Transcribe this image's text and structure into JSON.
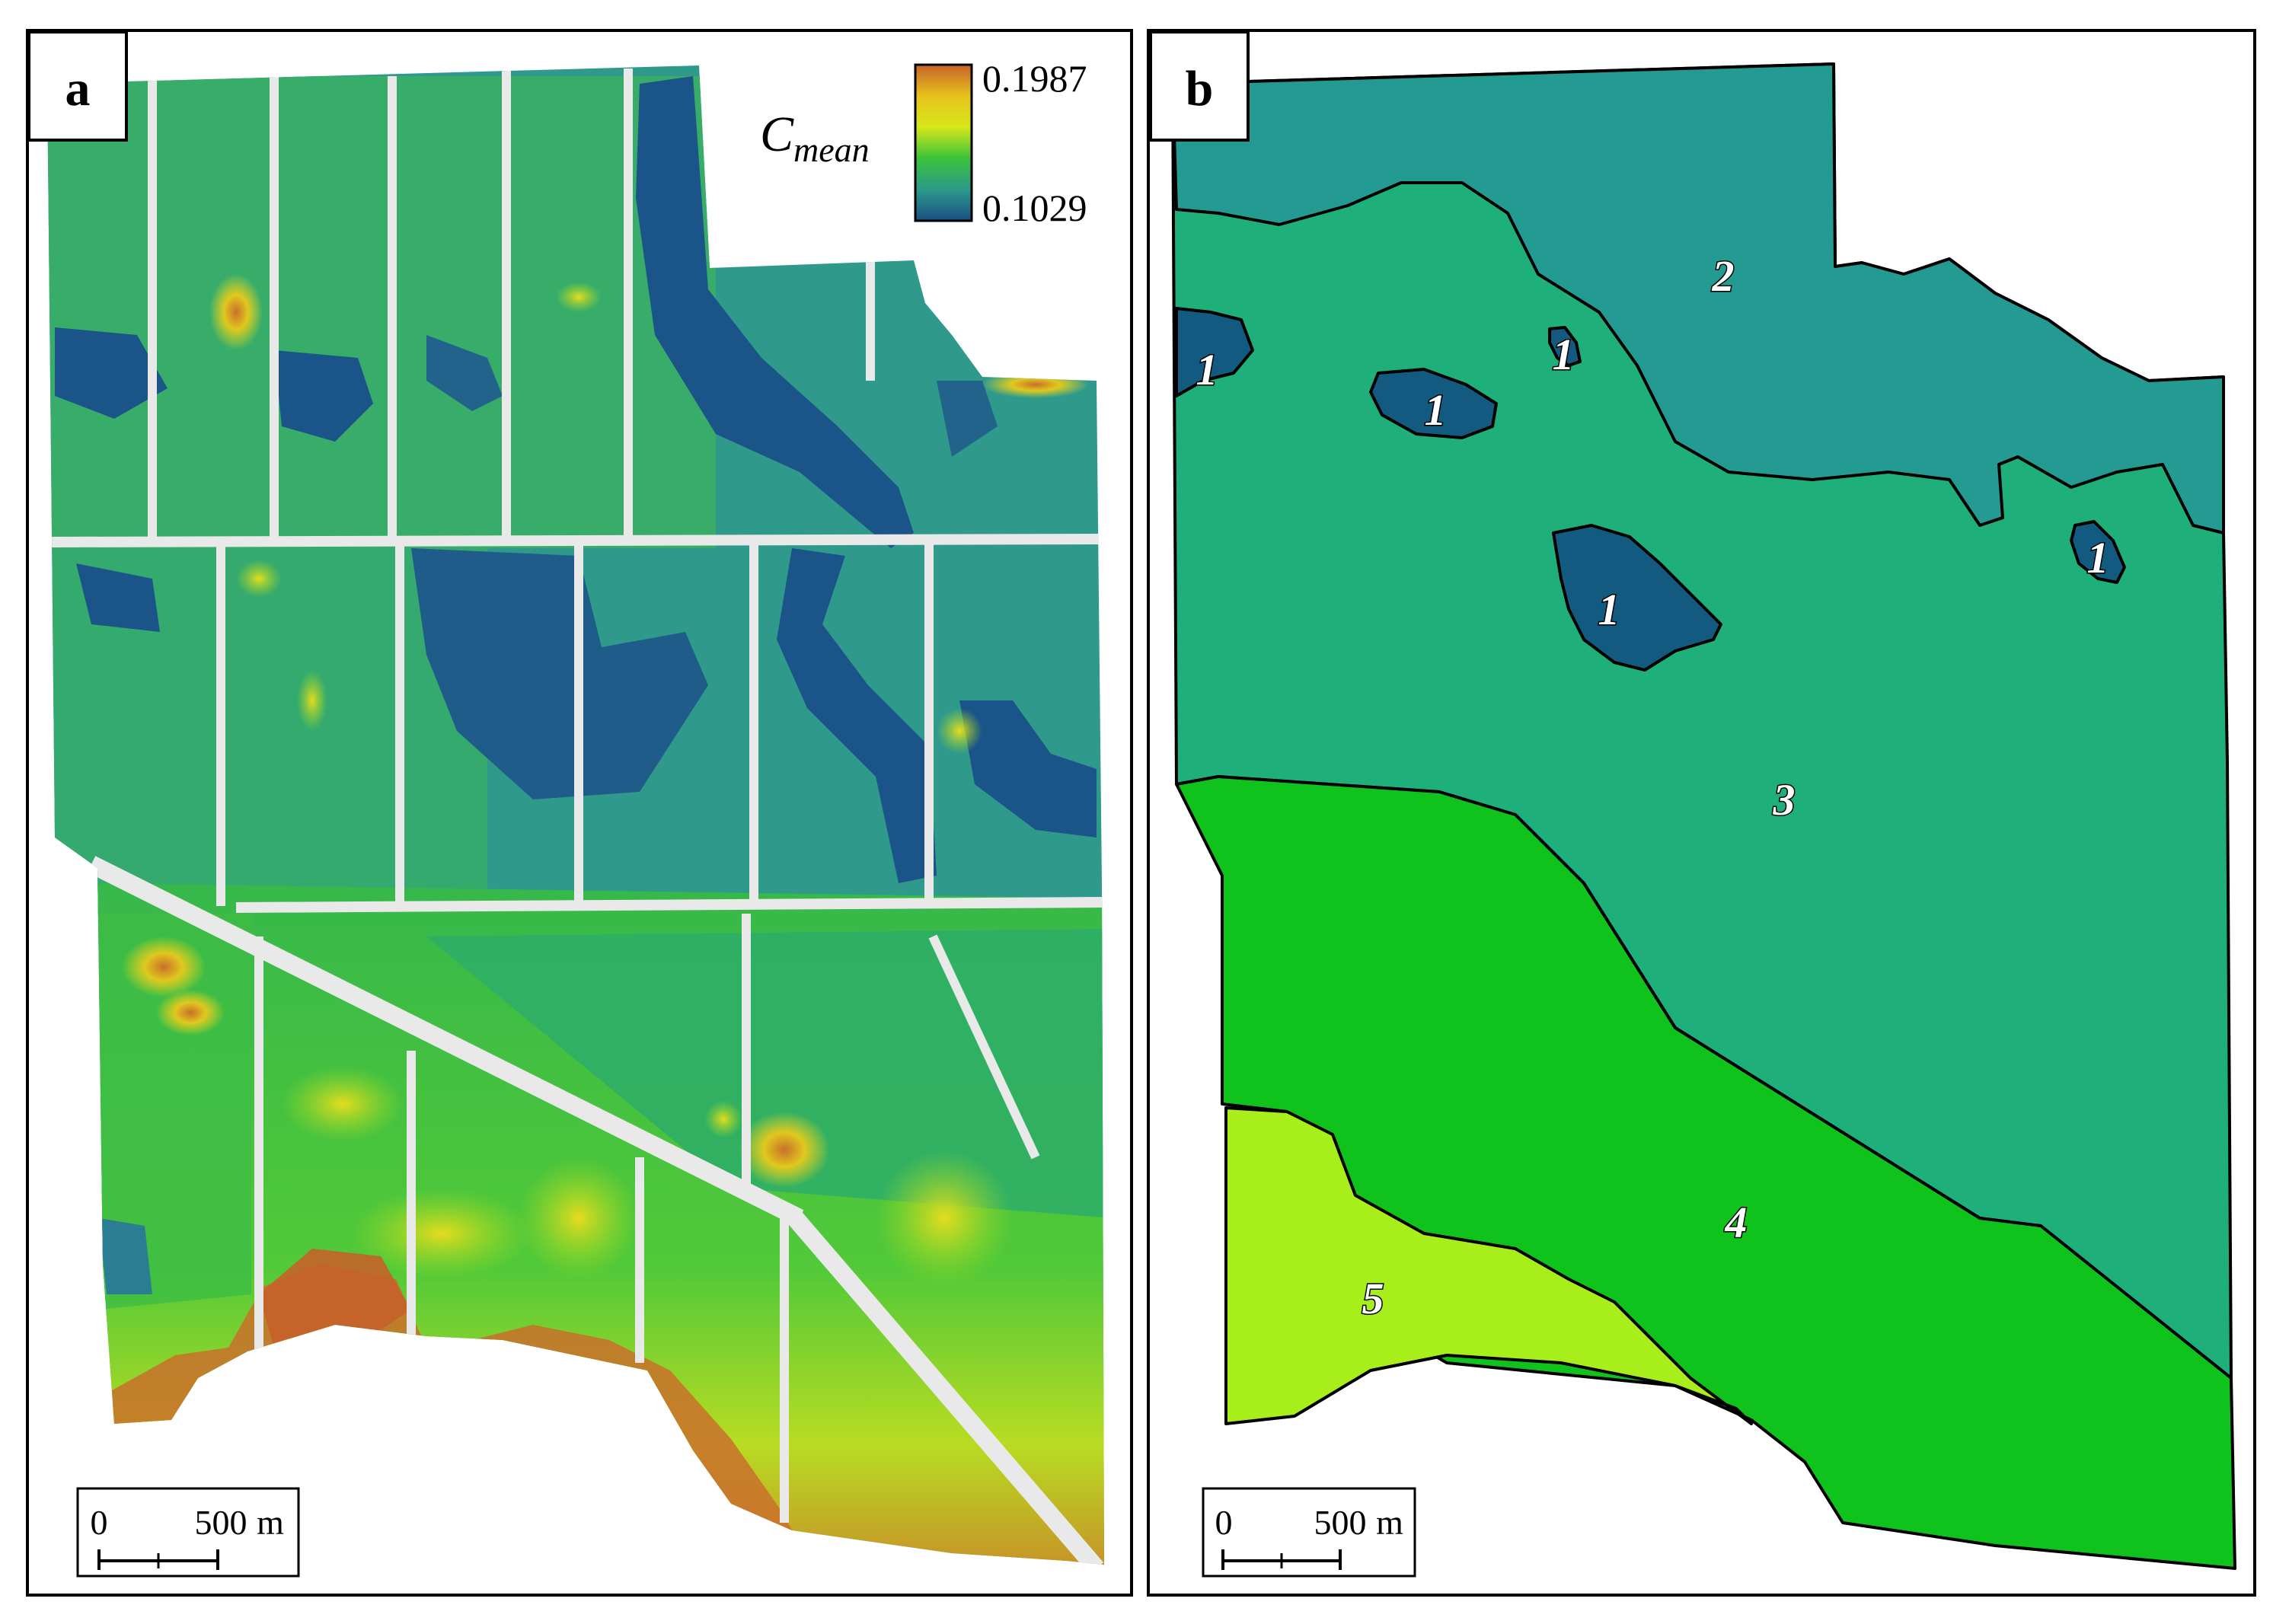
{
  "panels": {
    "a": {
      "letter": "a"
    },
    "b": {
      "letter": "b"
    }
  },
  "legend": {
    "title": "C",
    "title_subscript": "mean",
    "max_label": "0.1987",
    "min_label": "0.1029",
    "gradient_colors": [
      "#c5622a",
      "#e8c21c",
      "#d6e81a",
      "#3ac23a",
      "#2c9a8a",
      "#1a4f84"
    ]
  },
  "scale_bar": {
    "zero_label": "0",
    "distance_label": "500",
    "unit_label": "m"
  },
  "zones": [
    {
      "id": "1",
      "label": "1",
      "color": "#125a80"
    },
    {
      "id": "2",
      "label": "2",
      "color": "#239a92"
    },
    {
      "id": "3",
      "label": "3",
      "color": "#1faf7a"
    },
    {
      "id": "4",
      "label": "4",
      "color": "#0fc31c"
    },
    {
      "id": "5",
      "label": "5",
      "color": "#a7ee1a"
    }
  ],
  "colors": {
    "zone1": "#125a80",
    "zone2": "#239a92",
    "zone3": "#1faf7a",
    "zone4": "#0fc31c",
    "zone5": "#a7ee1a",
    "raster_blue": "#1b5488",
    "raster_teal": "#2f9a8c",
    "raster_green": "#36c23f",
    "raster_yellow": "#e0d81e",
    "raster_orange": "#c9702a"
  }
}
